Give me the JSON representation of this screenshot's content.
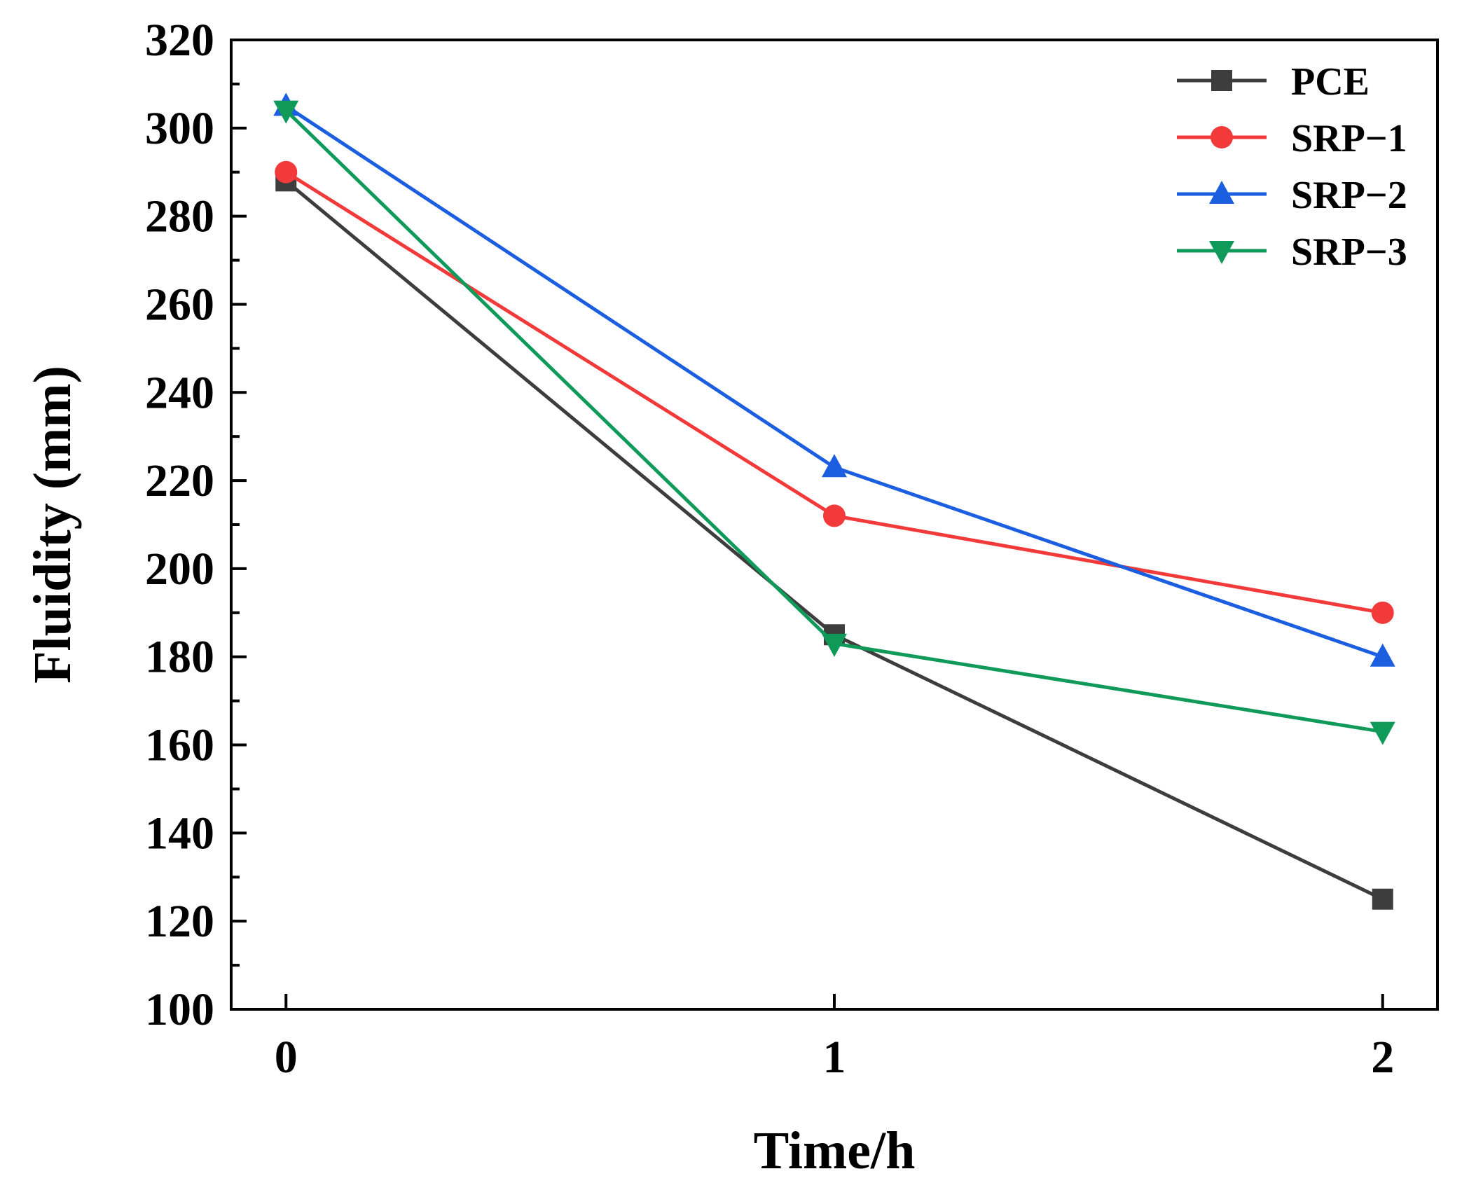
{
  "chart_data": {
    "type": "line",
    "title": "",
    "xlabel": "Time/h",
    "ylabel": "Fluidity (mm)",
    "x": [
      0,
      1,
      2
    ],
    "xticks": [
      "0",
      "1",
      "2"
    ],
    "xlim": [
      -0.1,
      2.1
    ],
    "ylim": [
      100,
      320
    ],
    "yticks": [
      "100",
      "120",
      "140",
      "160",
      "180",
      "200",
      "220",
      "240",
      "260",
      "280",
      "300",
      "320"
    ],
    "grid": false,
    "legend_position": "top-right",
    "series": [
      {
        "name": "PCE",
        "values": [
          288,
          185,
          125
        ],
        "color": "#3d3d3d",
        "marker": "square"
      },
      {
        "name": "SRP−1",
        "values": [
          290,
          212,
          190
        ],
        "color": "#f23a3a",
        "marker": "circle"
      },
      {
        "name": "SRP−2",
        "values": [
          305,
          223,
          180
        ],
        "color": "#1b5fe0",
        "marker": "triangle-up"
      },
      {
        "name": "SRP−3",
        "values": [
          304,
          183,
          163
        ],
        "color": "#0f9a5a",
        "marker": "triangle-down"
      }
    ]
  }
}
